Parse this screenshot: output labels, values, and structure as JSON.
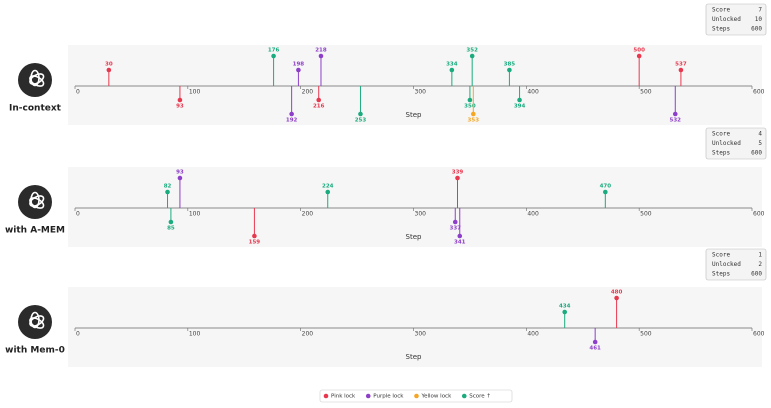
{
  "chart_data": [
    {
      "type": "timeline",
      "label": "In-context",
      "stats": [
        {
          "label": "Score",
          "value": 7
        },
        {
          "label": "Unlocked",
          "value": 10
        },
        {
          "label": "Steps",
          "value": 600
        }
      ],
      "xlabel": "Step",
      "xlim": [
        0,
        600
      ],
      "xticks": [
        0,
        100,
        200,
        300,
        400,
        500,
        600
      ],
      "events": {
        "x": [
          30,
          93,
          176,
          192,
          198,
          216,
          218,
          253,
          334,
          350,
          352,
          353,
          385,
          394,
          500,
          532,
          537
        ],
        "kind": [
          "Pink lock",
          "Pink lock",
          "Score ↑",
          "Purple lock",
          "Purple lock",
          "Pink lock",
          "Purple lock",
          "Score ↑",
          "Score ↑",
          "Score ↑",
          "Score ↑",
          "Yellow lock",
          "Score ↑",
          "Score ↑",
          "Pink lock",
          "Purple lock",
          "Pink lock"
        ]
      }
    },
    {
      "type": "timeline",
      "label": "with A-MEM",
      "stats": [
        {
          "label": "Score",
          "value": 4
        },
        {
          "label": "Unlocked",
          "value": 5
        },
        {
          "label": "Steps",
          "value": 600
        }
      ],
      "xlabel": "Step",
      "xlim": [
        0,
        600
      ],
      "xticks": [
        0,
        100,
        200,
        300,
        400,
        500,
        600
      ],
      "events": {
        "x": [
          82,
          85,
          93,
          159,
          224,
          337,
          339,
          341,
          470
        ],
        "kind": [
          "Score ↑",
          "Score ↑",
          "Purple lock",
          "Pink lock",
          "Score ↑",
          "Purple lock",
          "Pink lock",
          "Purple lock",
          "Score ↑"
        ]
      }
    },
    {
      "type": "timeline",
      "label": "with Mem-0",
      "stats": [
        {
          "label": "Score",
          "value": 1
        },
        {
          "label": "Unlocked",
          "value": 2
        },
        {
          "label": "Steps",
          "value": 600
        }
      ],
      "xlabel": "Step",
      "xlim": [
        0,
        600
      ],
      "xticks": [
        0,
        100,
        200,
        300,
        400,
        500,
        600
      ],
      "events": {
        "x": [
          434,
          461,
          480
        ],
        "kind": [
          "Score ↑",
          "Purple lock",
          "Pink lock"
        ]
      }
    }
  ],
  "legend": [
    {
      "name": "Pink lock",
      "color": "#e8384f"
    },
    {
      "name": "Purple lock",
      "color": "#8e3fc9"
    },
    {
      "name": "Yellow lock",
      "color": "#f5a623"
    },
    {
      "name": "Score ↑",
      "color": "#1aab7e"
    }
  ]
}
